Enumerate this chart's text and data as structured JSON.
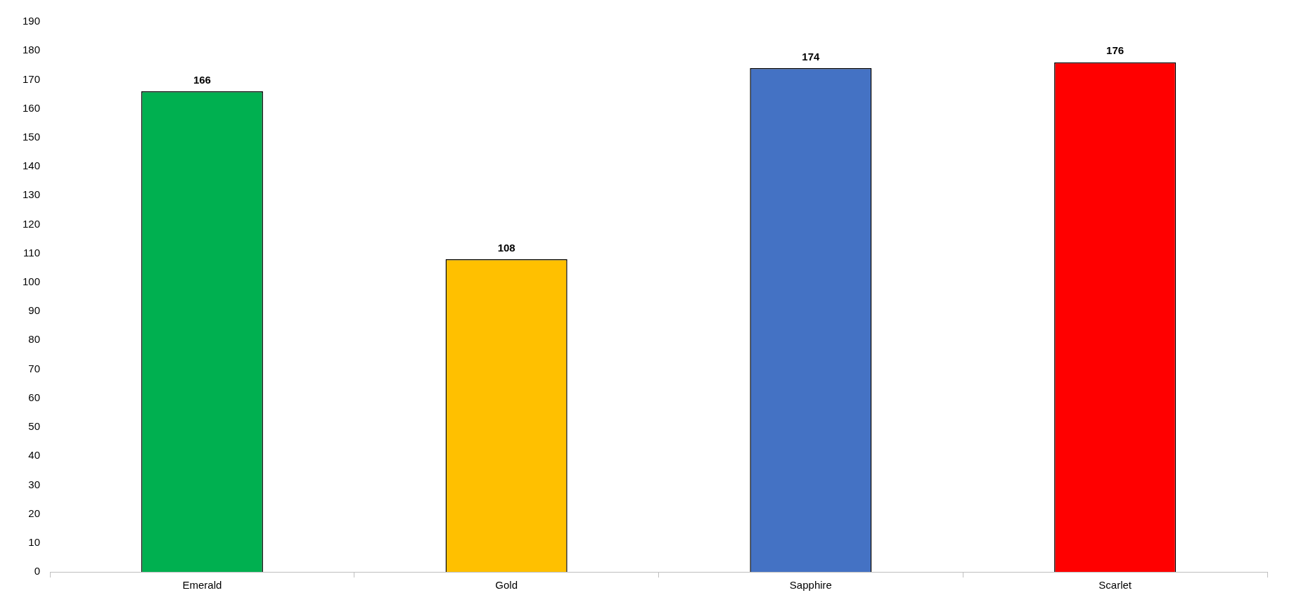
{
  "chart_data": {
    "type": "bar",
    "categories": [
      "Emerald",
      "Gold",
      "Sapphire",
      "Scarlet"
    ],
    "values": [
      166,
      108,
      174,
      176
    ],
    "colors": [
      "#00b050",
      "#ffc000",
      "#4472c4",
      "#ff0000"
    ],
    "ylim": [
      0,
      190
    ],
    "yticks": [
      0,
      10,
      20,
      30,
      40,
      50,
      60,
      70,
      80,
      90,
      100,
      110,
      120,
      130,
      140,
      150,
      160,
      170,
      180,
      190
    ],
    "data_labels": true,
    "grid": false,
    "legend": false
  }
}
